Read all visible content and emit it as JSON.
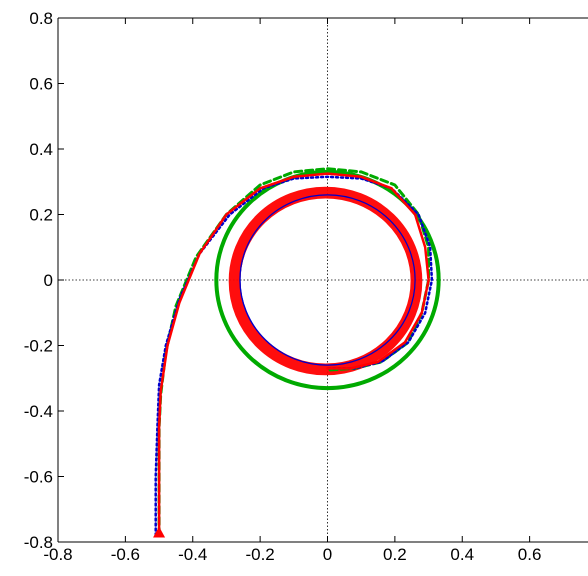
{
  "chart_data": {
    "type": "line",
    "title": "",
    "xlabel": "",
    "ylabel": "",
    "xlim": [
      -0.8,
      0.8
    ],
    "ylim": [
      -0.8,
      0.8
    ],
    "x_ticks": [
      "-0.8",
      "-0.6",
      "-0.4",
      "-0.2",
      "0",
      "0.2",
      "0.4",
      "0.6"
    ],
    "y_ticks": [
      "0.8",
      "0.6",
      "0.4",
      "0.2",
      "0",
      "-0.2",
      "-0.4",
      "-0.6",
      "-0.8"
    ],
    "x_tick_values": [
      -0.8,
      -0.6,
      -0.4,
      -0.2,
      0,
      0.2,
      0.4,
      0.6
    ],
    "y_tick_values": [
      0.8,
      0.6,
      0.4,
      0.2,
      0,
      -0.2,
      -0.4,
      -0.6,
      -0.8
    ],
    "grid": "dotted lines at x=0 and y=0",
    "legend": "none",
    "series": [
      {
        "color": "#0000cc",
        "style": "solid",
        "shape": "circle",
        "center": [
          0,
          0
        ],
        "radius": 0.26
      },
      {
        "color": "#00aa00",
        "style": "solid-thick",
        "shape": "circle",
        "center": [
          0,
          0
        ],
        "radius": 0.33
      },
      {
        "color": "#ff0000",
        "style": "thick-band",
        "shape": "ring",
        "center": [
          0,
          0
        ],
        "radius_inner": 0.26,
        "radius_outer": 0.28
      },
      {
        "color": "#00aa00",
        "style": "dashed",
        "points": [
          [
            -0.5,
            -0.78
          ],
          [
            -0.5,
            -0.6
          ],
          [
            -0.5,
            -0.45
          ],
          [
            -0.495,
            -0.35
          ],
          [
            -0.48,
            -0.22
          ],
          [
            -0.45,
            -0.08
          ],
          [
            -0.39,
            0.07
          ],
          [
            -0.3,
            0.2
          ],
          [
            -0.2,
            0.29
          ],
          [
            -0.1,
            0.33
          ],
          [
            0,
            0.34
          ],
          [
            0.1,
            0.33
          ],
          [
            0.2,
            0.29
          ],
          [
            0.27,
            0.2
          ],
          [
            0.3,
            0.1
          ],
          [
            0.3,
            0
          ],
          [
            0.28,
            -0.1
          ],
          [
            0.24,
            -0.19
          ],
          [
            0.16,
            -0.25
          ],
          [
            0.08,
            -0.27
          ],
          [
            0,
            -0.275
          ]
        ]
      },
      {
        "color": "#0000cc",
        "style": "dotted",
        "points": [
          [
            -0.51,
            -0.78
          ],
          [
            -0.51,
            -0.6
          ],
          [
            -0.505,
            -0.45
          ],
          [
            -0.5,
            -0.32
          ],
          [
            -0.48,
            -0.2
          ],
          [
            -0.44,
            -0.06
          ],
          [
            -0.38,
            0.08
          ],
          [
            -0.29,
            0.2
          ],
          [
            -0.19,
            0.28
          ],
          [
            -0.1,
            0.31
          ],
          [
            0,
            0.315
          ],
          [
            0.1,
            0.31
          ],
          [
            0.19,
            0.28
          ],
          [
            0.27,
            0.2
          ],
          [
            0.305,
            0.1
          ],
          [
            0.31,
            0
          ],
          [
            0.29,
            -0.1
          ],
          [
            0.24,
            -0.19
          ],
          [
            0.16,
            -0.25
          ],
          [
            0.08,
            -0.27
          ],
          [
            0,
            -0.27
          ]
        ]
      },
      {
        "color": "#ff0000",
        "style": "solid",
        "points": [
          [
            -0.5,
            -0.78
          ],
          [
            -0.5,
            -0.6
          ],
          [
            -0.5,
            -0.45
          ],
          [
            -0.495,
            -0.34
          ],
          [
            -0.475,
            -0.2
          ],
          [
            -0.44,
            -0.07
          ],
          [
            -0.38,
            0.08
          ],
          [
            -0.3,
            0.2
          ],
          [
            -0.2,
            0.28
          ],
          [
            -0.1,
            0.315
          ],
          [
            0,
            0.325
          ],
          [
            0.1,
            0.315
          ],
          [
            0.19,
            0.28
          ],
          [
            0.26,
            0.2
          ],
          [
            0.29,
            0.1
          ],
          [
            0.3,
            0
          ],
          [
            0.28,
            -0.1
          ],
          [
            0.23,
            -0.19
          ],
          [
            0.15,
            -0.25
          ],
          [
            0.07,
            -0.27
          ],
          [
            0,
            -0.27
          ]
        ]
      }
    ],
    "marker": {
      "color": "#ff0000",
      "shape": "triangle-up",
      "x": -0.5,
      "y": -0.78
    }
  }
}
